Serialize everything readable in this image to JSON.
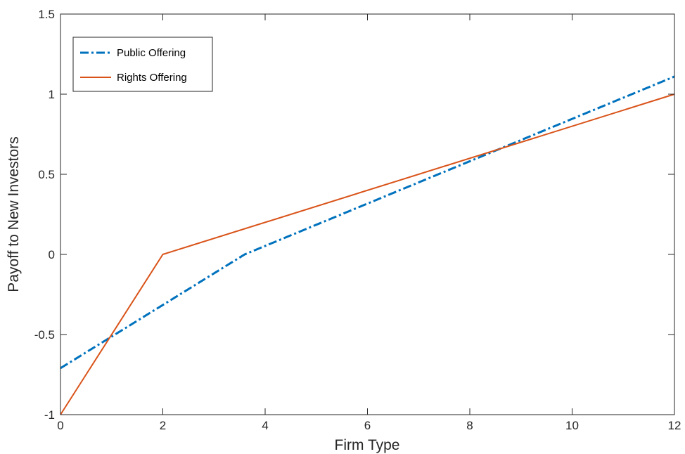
{
  "chart_data": {
    "type": "line",
    "title": "",
    "xlabel": "Firm Type",
    "ylabel": "Payoff to New Investors",
    "xlim": [
      0,
      12
    ],
    "ylim": [
      -1,
      1.5
    ],
    "xticks": [
      "0",
      "2",
      "4",
      "6",
      "8",
      "10",
      "12"
    ],
    "yticks": [
      "-1",
      "-0.5",
      "0",
      "0.5",
      "1",
      "1.5"
    ],
    "xtick_values": [
      0,
      2,
      4,
      6,
      8,
      10,
      12
    ],
    "ytick_values": [
      -1,
      -0.5,
      0,
      0.5,
      1,
      1.5
    ],
    "grid": false,
    "legend_position": "top-left",
    "series": [
      {
        "name": "Public Offering",
        "color": "#0072bd",
        "line_style": "dash-dot",
        "x": [
          0,
          3.6,
          12
        ],
        "y": [
          -0.71,
          0,
          1.11
        ]
      },
      {
        "name": "Rights Offering",
        "color": "#d95319",
        "line_style": "solid",
        "x": [
          0,
          2,
          12
        ],
        "y": [
          -1,
          0,
          1
        ]
      }
    ]
  }
}
